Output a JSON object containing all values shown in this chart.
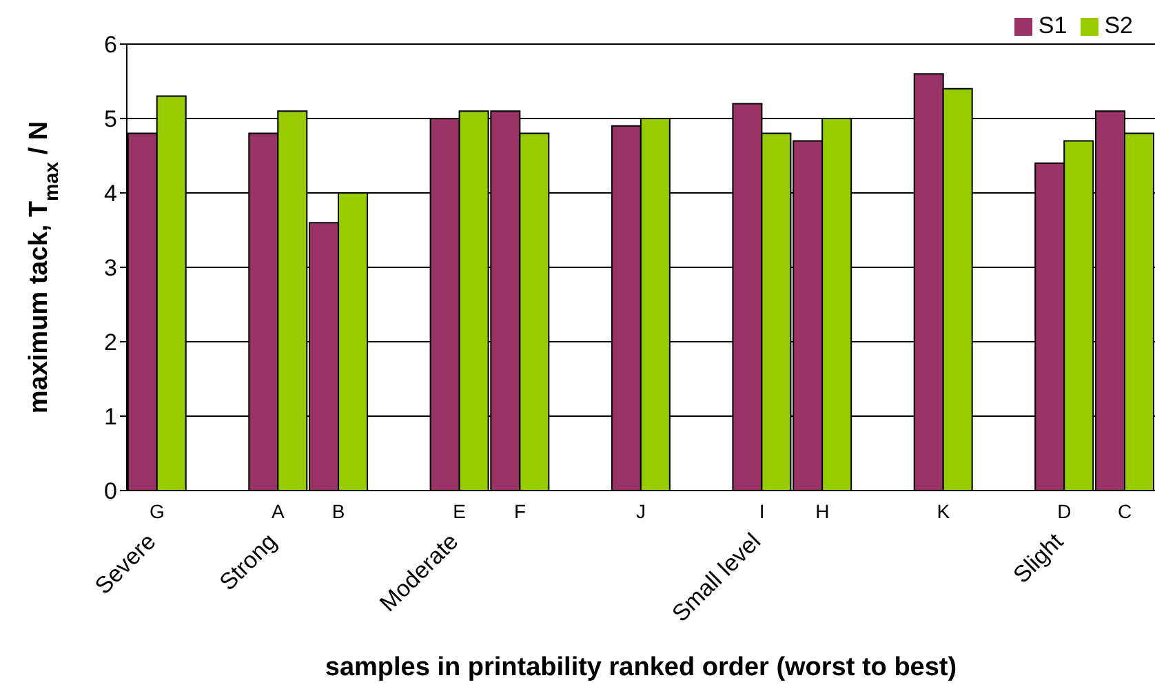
{
  "chart_data": {
    "type": "bar",
    "xlabel": "samples in printability ranked order (worst to best)",
    "ylabel": "maximum tack, T$_{max}$ / N",
    "categories": [
      "G",
      null,
      "A",
      "B",
      null,
      "E",
      "F",
      null,
      "J",
      null,
      "I",
      "H",
      null,
      "K",
      null,
      "D",
      "C"
    ],
    "series": [
      {
        "name": "S1",
        "color": "#993366",
        "values": [
          4.8,
          null,
          4.8,
          3.6,
          null,
          5.0,
          5.1,
          null,
          4.9,
          null,
          5.2,
          4.7,
          null,
          5.6,
          null,
          4.4,
          5.1
        ]
      },
      {
        "name": "S2",
        "color": "#99cc00",
        "values": [
          5.3,
          null,
          5.1,
          4.0,
          null,
          5.1,
          4.8,
          null,
          5.0,
          null,
          4.8,
          5.0,
          null,
          5.4,
          null,
          4.7,
          4.8
        ]
      }
    ],
    "annotations": [
      "Severe",
      "Strong",
      "Moderate",
      "Small level",
      "Slight"
    ],
    "ylim": [
      0,
      6
    ],
    "yticks": [
      0,
      1,
      2,
      3,
      4,
      5,
      6
    ],
    "grid": "y",
    "legend": "top right"
  }
}
